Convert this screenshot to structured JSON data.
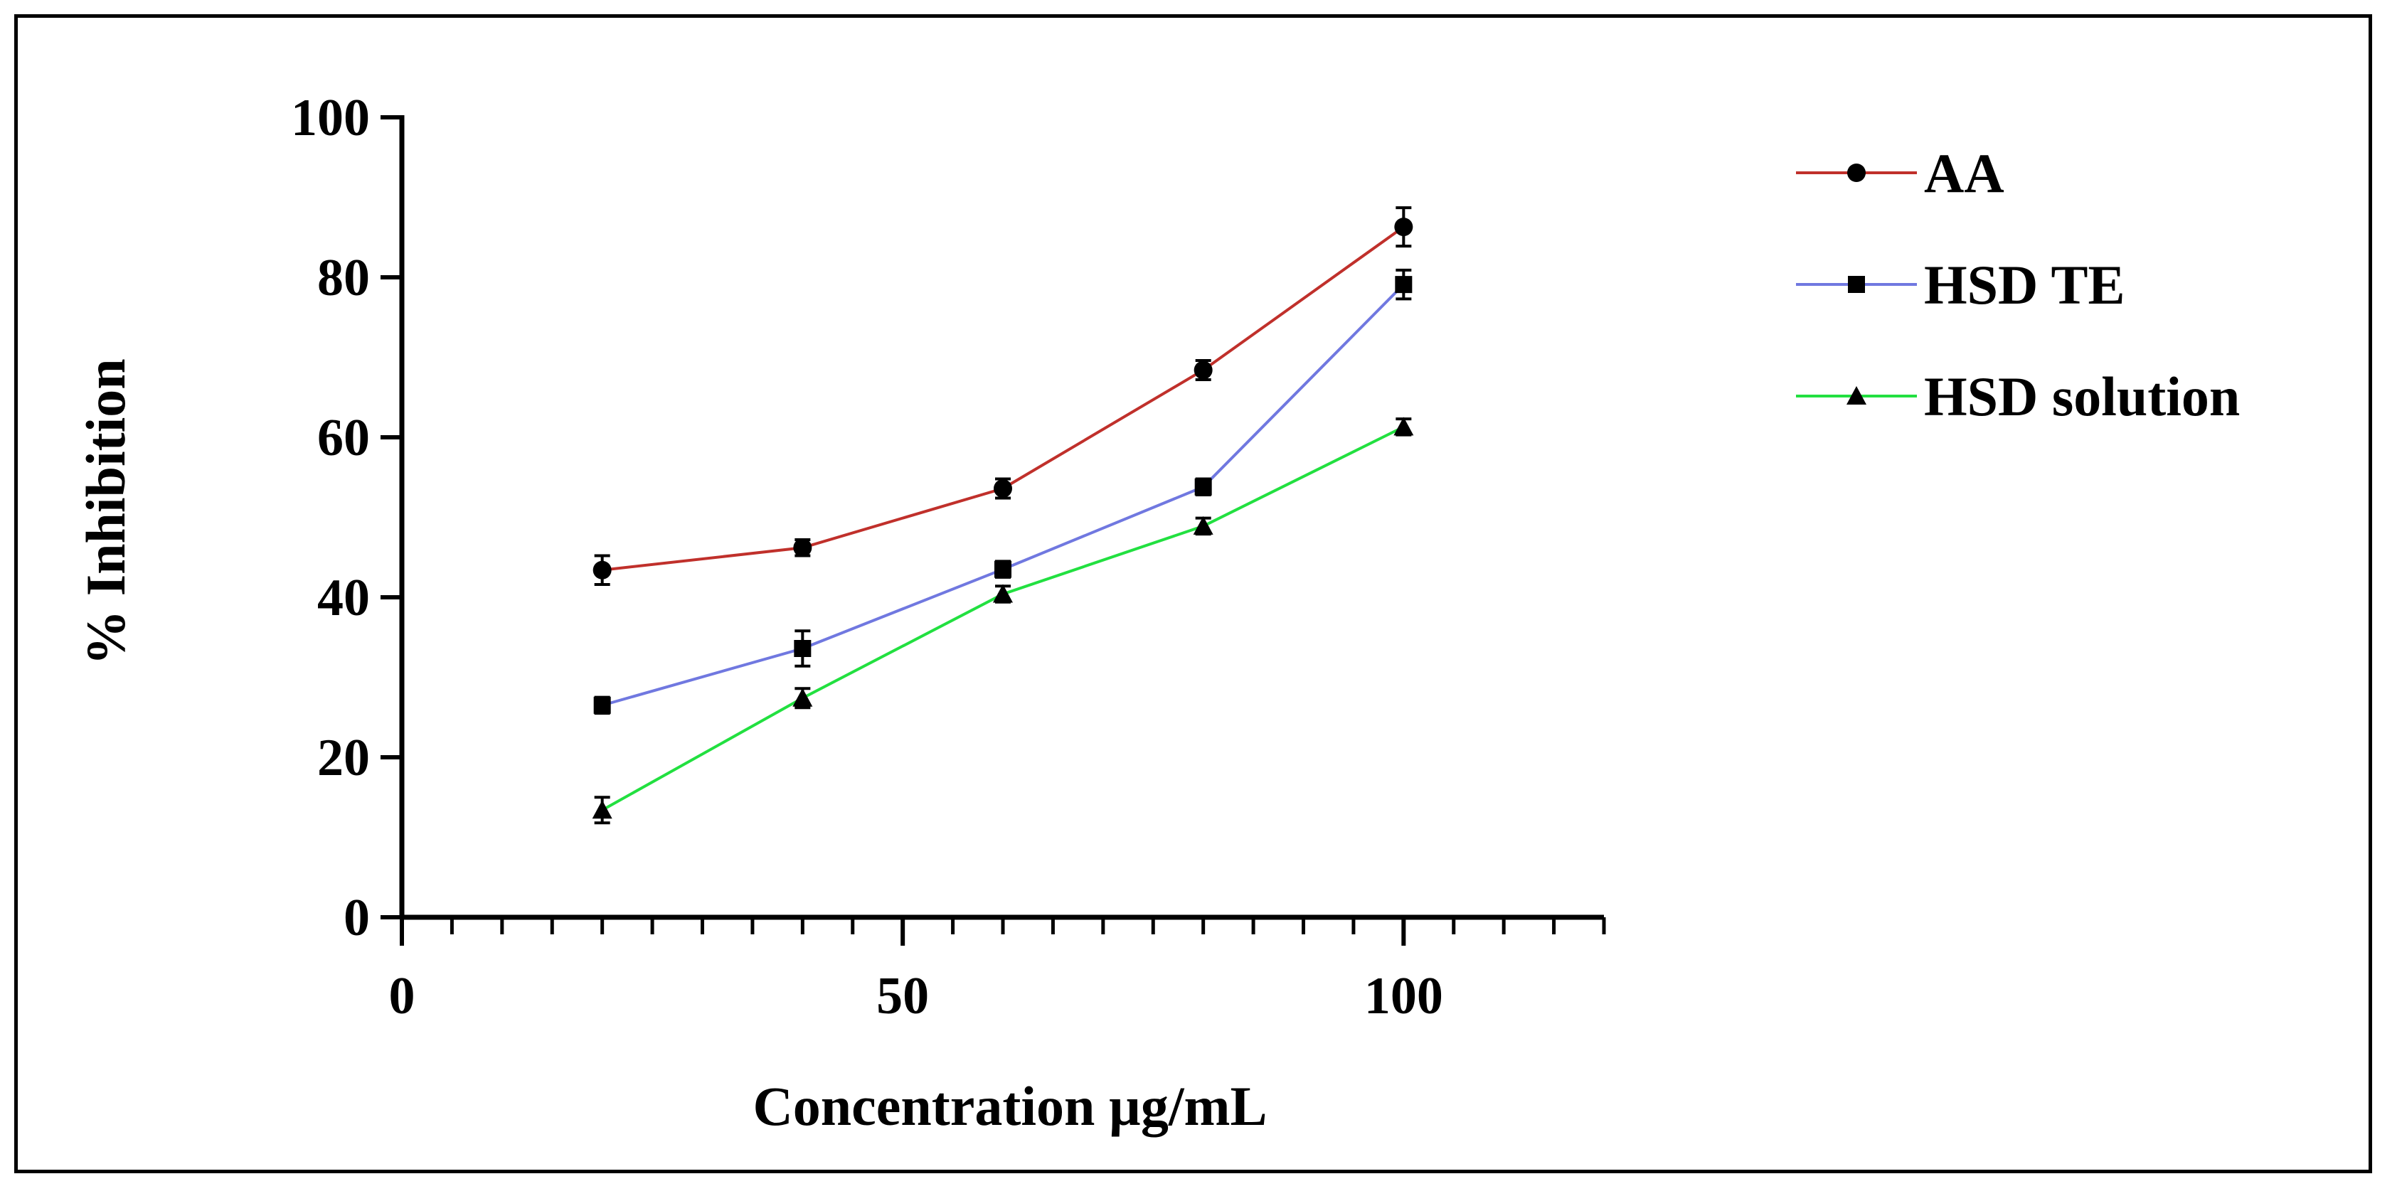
{
  "chart_data": {
    "type": "line",
    "title": "",
    "xlabel": "Concentration µg/mL",
    "ylabel": "% Inhibition",
    "xlim": [
      0,
      120
    ],
    "ylim": [
      0,
      100
    ],
    "x_ticks": [
      0,
      50,
      100
    ],
    "x_minor_step": 5,
    "y_ticks": [
      0,
      20,
      40,
      60,
      80,
      100
    ],
    "grid": false,
    "legend_position": "right",
    "x": [
      20,
      40,
      60,
      80,
      100
    ],
    "series": [
      {
        "name": "AA",
        "color": "#c0302b",
        "marker": "circle",
        "values": [
          43.4,
          46.2,
          53.6,
          68.4,
          86.3
        ],
        "errors": [
          1.8,
          1.0,
          1.2,
          1.2,
          2.4
        ]
      },
      {
        "name": "HSD TE",
        "color": "#7078e0",
        "marker": "square",
        "values": [
          26.5,
          33.6,
          43.5,
          53.8,
          79.1
        ],
        "errors": [
          1.0,
          2.2,
          1.0,
          1.0,
          1.8
        ]
      },
      {
        "name": "HSD solution",
        "color": "#22e040",
        "marker": "triangle",
        "values": [
          13.4,
          27.4,
          40.4,
          48.9,
          61.3
        ],
        "errors": [
          1.6,
          1.2,
          1.0,
          1.0,
          1.0
        ]
      }
    ]
  }
}
